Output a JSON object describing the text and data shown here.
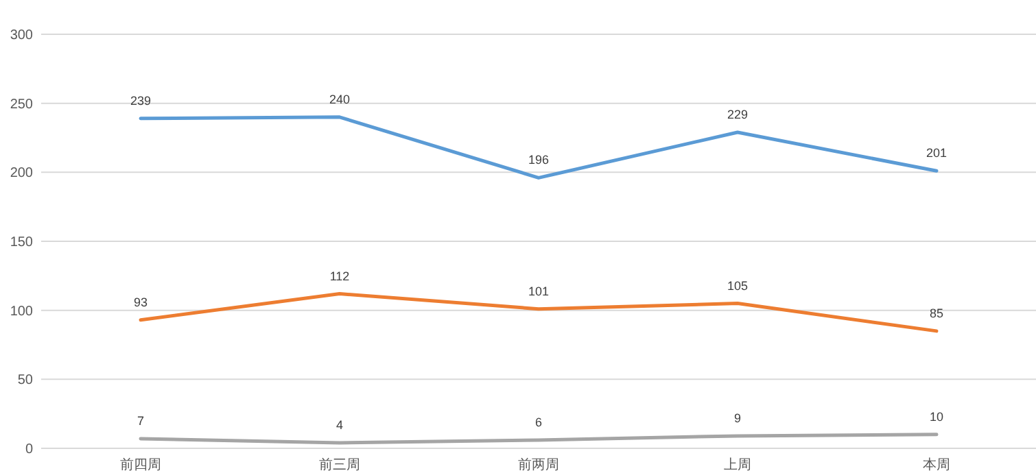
{
  "chart_data": {
    "type": "line",
    "categories": [
      "前四周",
      "前三周",
      "前两周",
      "上周",
      "本周"
    ],
    "series": [
      {
        "color": "#5b9bd5",
        "values": [
          239,
          240,
          196,
          229,
          201
        ]
      },
      {
        "color": "#ed7d31",
        "values": [
          93,
          112,
          101,
          105,
          85
        ]
      },
      {
        "color": "#a5a5a5",
        "values": [
          7,
          4,
          6,
          9,
          10
        ]
      }
    ],
    "ylim": [
      0,
      300
    ],
    "yticks": [
      0,
      50,
      100,
      150,
      200,
      250,
      300
    ],
    "grid": "y",
    "data_labels": true,
    "marker": "none",
    "line_style": "solid"
  }
}
